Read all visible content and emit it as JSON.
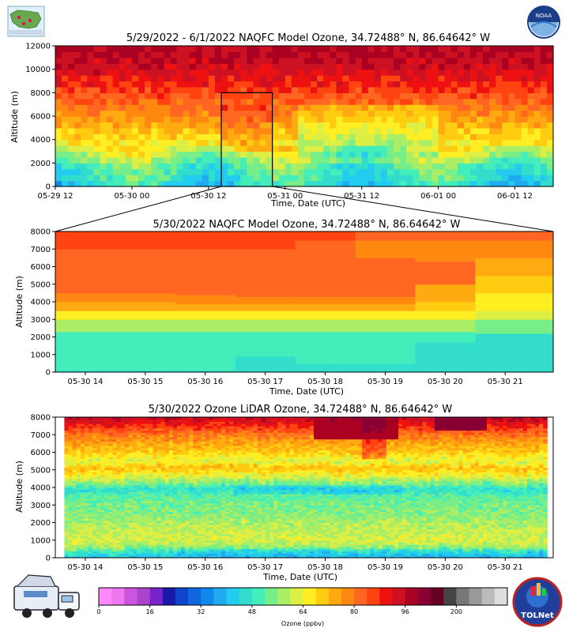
{
  "chart_data": [
    {
      "type": "heatmap",
      "title": "5/29/2022 - 6/1/2022 NAQFC Model Ozone, 34.72488° N, 86.64642° W",
      "xlabel": "Time, Date (UTC)",
      "ylabel": "Altitude (m)",
      "x_range_hours": [
        0,
        78
      ],
      "x_ticks": [
        {
          "at": 0,
          "label": "05-29 12"
        },
        {
          "at": 12,
          "label": "05-30 00"
        },
        {
          "at": 24,
          "label": "05-30 12"
        },
        {
          "at": 36,
          "label": "05-31 00"
        },
        {
          "at": 48,
          "label": "05-31 12"
        },
        {
          "at": 60,
          "label": "06-01 00"
        },
        {
          "at": 72,
          "label": "06-01 12"
        }
      ],
      "ylim": [
        0,
        12000
      ],
      "y_ticks": [
        0,
        2000,
        4000,
        6000,
        8000,
        10000,
        12000
      ],
      "zoom_box": {
        "x_hours": [
          26,
          34
        ],
        "y_m": [
          0,
          8000
        ]
      },
      "profile_altitudes_m": [
        0,
        800,
        1600,
        2400,
        3200,
        4000,
        5000,
        6000,
        7500,
        9000,
        10500,
        12000
      ],
      "profile_ozone_ppbv": [
        44,
        48,
        50,
        57,
        63,
        68,
        72,
        77,
        83,
        90,
        95,
        98
      ]
    },
    {
      "type": "heatmap",
      "title": "5/30/2022 NAQFC Model Ozone, 34.72488° N, 86.64642° W",
      "xlabel": "Time, Date (UTC)",
      "ylabel": "Altitude (m)",
      "x_range_hours": [
        13.5,
        21.8
      ],
      "x_ticks": [
        {
          "at": 14,
          "label": "05-30 14"
        },
        {
          "at": 15,
          "label": "05-30 15"
        },
        {
          "at": 16,
          "label": "05-30 16"
        },
        {
          "at": 17,
          "label": "05-30 17"
        },
        {
          "at": 18,
          "label": "05-30 18"
        },
        {
          "at": 19,
          "label": "05-30 19"
        },
        {
          "at": 20,
          "label": "05-30 20"
        },
        {
          "at": 21,
          "label": "05-30 21"
        }
      ],
      "ylim": [
        0,
        8000
      ],
      "y_ticks": [
        0,
        1000,
        2000,
        3000,
        4000,
        5000,
        6000,
        7000,
        8000
      ],
      "columns": [
        {
          "t0": 13.5,
          "t1": 14.5,
          "bands": [
            [
              0,
              100,
              44
            ],
            [
              100,
              2300,
              48
            ],
            [
              2300,
              3000,
              57
            ],
            [
              3000,
              3500,
              64
            ],
            [
              3500,
              4000,
              72
            ],
            [
              4000,
              4500,
              76
            ],
            [
              4500,
              7000,
              80
            ],
            [
              7000,
              8000,
              86
            ]
          ]
        },
        {
          "t0": 14.5,
          "t1": 15.5,
          "bands": [
            [
              0,
              100,
              44
            ],
            [
              100,
              2300,
              48
            ],
            [
              2300,
              3000,
              57
            ],
            [
              3000,
              3500,
              64
            ],
            [
              3500,
              4000,
              72
            ],
            [
              4000,
              4500,
              76
            ],
            [
              4500,
              7000,
              80
            ],
            [
              7000,
              8000,
              86
            ]
          ]
        },
        {
          "t0": 15.5,
          "t1": 16.5,
          "bands": [
            [
              0,
              100,
              44
            ],
            [
              100,
              2300,
              48
            ],
            [
              2300,
              3000,
              57
            ],
            [
              3000,
              3500,
              64
            ],
            [
              3500,
              3900,
              72
            ],
            [
              3900,
              4400,
              76
            ],
            [
              4400,
              7000,
              80
            ],
            [
              7000,
              8000,
              86
            ]
          ]
        },
        {
          "t0": 16.5,
          "t1": 17.5,
          "bands": [
            [
              0,
              900,
              44
            ],
            [
              900,
              2300,
              48
            ],
            [
              2300,
              3000,
              57
            ],
            [
              3000,
              3500,
              64
            ],
            [
              3500,
              3900,
              72
            ],
            [
              3900,
              4300,
              76
            ],
            [
              4300,
              7000,
              80
            ],
            [
              7000,
              8000,
              86
            ]
          ]
        },
        {
          "t0": 17.5,
          "t1": 18.5,
          "bands": [
            [
              0,
              500,
              44
            ],
            [
              500,
              2300,
              48
            ],
            [
              2300,
              3000,
              57
            ],
            [
              3000,
              3500,
              64
            ],
            [
              3500,
              3900,
              72
            ],
            [
              3900,
              4300,
              76
            ],
            [
              4300,
              7500,
              80
            ],
            [
              7500,
              8000,
              86
            ]
          ]
        },
        {
          "t0": 18.5,
          "t1": 19.5,
          "bands": [
            [
              0,
              500,
              44
            ],
            [
              500,
              2300,
              48
            ],
            [
              2300,
              3000,
              57
            ],
            [
              3000,
              3500,
              64
            ],
            [
              3500,
              3900,
              72
            ],
            [
              3900,
              4300,
              76
            ],
            [
              4300,
              6500,
              80
            ],
            [
              6500,
              7500,
              76
            ],
            [
              7500,
              8000,
              82
            ]
          ]
        },
        {
          "t0": 19.5,
          "t1": 20.5,
          "bands": [
            [
              0,
              1700,
              44
            ],
            [
              1700,
              2300,
              48
            ],
            [
              2300,
              3000,
              57
            ],
            [
              3000,
              3500,
              64
            ],
            [
              3500,
              4000,
              68
            ],
            [
              4000,
              5000,
              72
            ],
            [
              5000,
              6300,
              80
            ],
            [
              6300,
              7500,
              76
            ],
            [
              7500,
              8000,
              82
            ]
          ]
        },
        {
          "t0": 20.5,
          "t1": 21.8,
          "bands": [
            [
              0,
              2200,
              44
            ],
            [
              2200,
              3000,
              52
            ],
            [
              3000,
              3500,
              60
            ],
            [
              3500,
              4500,
              64
            ],
            [
              4500,
              5500,
              68
            ],
            [
              5500,
              6500,
              72
            ],
            [
              6500,
              7500,
              76
            ],
            [
              7500,
              8000,
              82
            ]
          ]
        }
      ]
    },
    {
      "type": "heatmap",
      "title": "5/30/2022 Ozone LiDAR Ozone, 34.72488° N, 86.64642° W",
      "xlabel": "Time, Date (UTC)",
      "ylabel": "Altitude (m)",
      "x_range_hours": [
        13.5,
        21.8
      ],
      "x_ticks": [
        {
          "at": 14,
          "label": "05-30 14"
        },
        {
          "at": 15,
          "label": "05-30 15"
        },
        {
          "at": 16,
          "label": "05-30 16"
        },
        {
          "at": 17,
          "label": "05-30 17"
        },
        {
          "at": 18,
          "label": "05-30 18"
        },
        {
          "at": 19,
          "label": "05-30 19"
        },
        {
          "at": 20,
          "label": "05-30 20"
        },
        {
          "at": 21,
          "label": "05-30 21"
        }
      ],
      "ylim": [
        0,
        8000
      ],
      "y_ticks": [
        0,
        1000,
        2000,
        3000,
        4000,
        5000,
        6000,
        7000,
        8000
      ],
      "data_start_hour": 13.65,
      "data_end_hour": 21.7,
      "base_profile": {
        "alt_m": [
          0,
          300,
          600,
          1000,
          1500,
          2000,
          2500,
          3000,
          3500,
          3900,
          4300,
          4700,
          5100,
          5500,
          6000,
          6500,
          7000,
          7500,
          8000
        ],
        "ozone_ppbv": [
          42,
          46,
          56,
          62,
          60,
          58,
          55,
          54,
          52,
          46,
          56,
          64,
          72,
          62,
          70,
          74,
          80,
          88,
          96
        ]
      }
    }
  ],
  "colorbar": {
    "label": "Ozone (ppbv)",
    "ticks": [
      {
        "value": 0,
        "label": "0"
      },
      {
        "value": 16,
        "label": "16"
      },
      {
        "value": 32,
        "label": "32"
      },
      {
        "value": 48,
        "label": "48"
      },
      {
        "value": 64,
        "label": "64"
      },
      {
        "value": 80,
        "label": "80"
      },
      {
        "value": 96,
        "label": "96"
      },
      {
        "value": 200,
        "label": "200"
      }
    ],
    "colors": [
      "#ff88ff",
      "#ee77ee",
      "#cc55dd",
      "#aa44cc",
      "#7a22cc",
      "#1a1aa8",
      "#1144cc",
      "#1166dd",
      "#1188ee",
      "#22aaee",
      "#22ccee",
      "#33ddcc",
      "#44eebb",
      "#77ee88",
      "#aaee66",
      "#ddee44",
      "#ffee22",
      "#ffcc11",
      "#ffaa11",
      "#ff8811",
      "#ff6622",
      "#ff4411",
      "#ee1111",
      "#cc1122",
      "#aa0022",
      "#880033",
      "#660022",
      "#444444",
      "#777777",
      "#999999",
      "#bbbbbb",
      "#dddddd"
    ]
  },
  "logos": {
    "noaa_text": "NOAA",
    "tolnet_text": "TOLNet"
  }
}
